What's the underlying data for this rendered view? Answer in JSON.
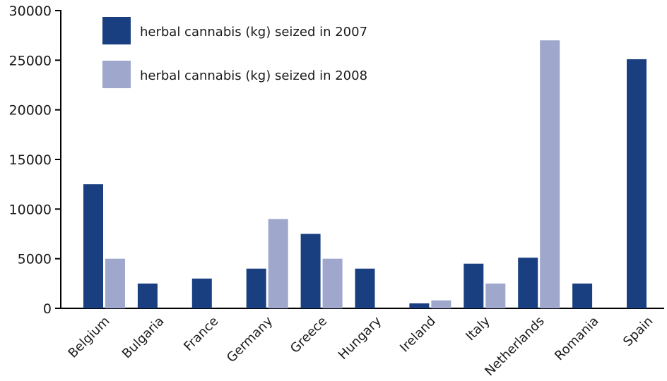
{
  "chart_data": {
    "type": "bar",
    "title": "",
    "xlabel": "",
    "ylabel": "",
    "ylim": [
      0,
      30000
    ],
    "yticks": [
      0,
      5000,
      10000,
      15000,
      20000,
      25000,
      30000
    ],
    "grid": false,
    "legend_position": "top-left",
    "categories": [
      "Belgium",
      "Bulgaria",
      "France",
      "Germany",
      "Greece",
      "Hungary",
      "Ireland",
      "Italy",
      "Netherlands",
      "Romania",
      "Spain"
    ],
    "series": [
      {
        "name": "herbal cannabis (kg) seized in 2007",
        "color": "#1a3f80",
        "values": [
          12500,
          2500,
          3000,
          4000,
          7500,
          4000,
          500,
          4500,
          5100,
          2500,
          25100
        ]
      },
      {
        "name": "herbal cannabis (kg) seized in 2008",
        "color": "#9fa7cc",
        "values": [
          5000,
          null,
          null,
          9000,
          5000,
          null,
          800,
          2500,
          27000,
          null,
          null
        ]
      }
    ]
  }
}
